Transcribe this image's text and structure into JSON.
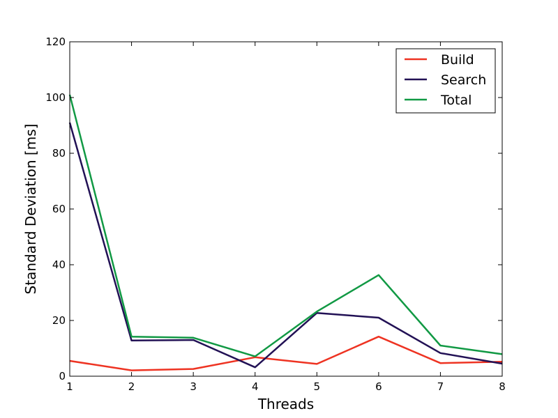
{
  "chart_data": {
    "type": "line",
    "title": "",
    "xlabel": "Threads",
    "ylabel": "Standard Deviation [ms]",
    "xlim": [
      1,
      8
    ],
    "ylim": [
      0,
      120
    ],
    "x_ticks": [
      "1",
      "2",
      "3",
      "4",
      "5",
      "6",
      "7",
      "8"
    ],
    "y_ticks": [
      "0",
      "20",
      "40",
      "60",
      "80",
      "100",
      "120"
    ],
    "grid": false,
    "legend_position": "top-right",
    "x": [
      1,
      2,
      3,
      4,
      5,
      6,
      7,
      8
    ],
    "series": [
      {
        "name": "Build",
        "color": "#ee3322",
        "values": [
          5.5,
          2.1,
          2.6,
          6.8,
          4.4,
          14.2,
          4.7,
          5.2
        ]
      },
      {
        "name": "Search",
        "color": "#221155",
        "values": [
          91.0,
          12.8,
          13.0,
          3.2,
          22.7,
          21.0,
          8.3,
          4.5
        ]
      },
      {
        "name": "Total",
        "color": "#119944",
        "values": [
          101.0,
          14.2,
          13.8,
          7.1,
          23.2,
          36.3,
          11.0,
          7.9
        ]
      }
    ]
  }
}
